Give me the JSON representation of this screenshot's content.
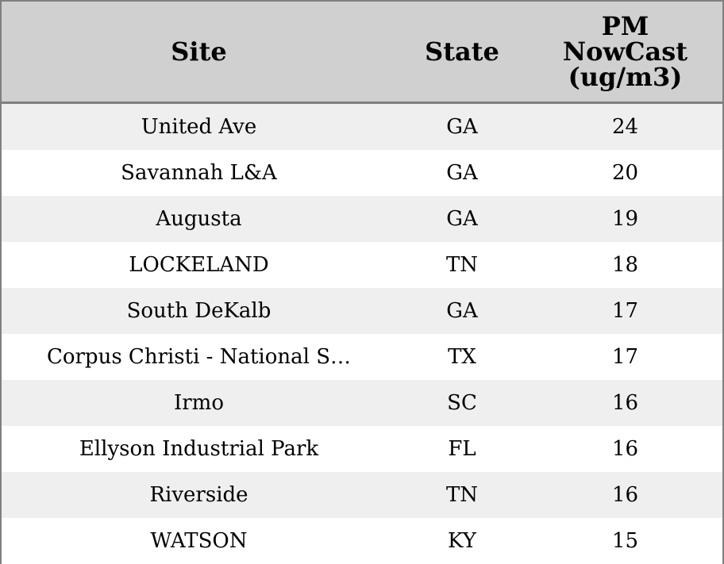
{
  "table": {
    "columns": [
      "Site",
      "State",
      "PM NowCast (ug/m3)"
    ],
    "rows": [
      [
        "United Ave",
        "GA",
        24
      ],
      [
        "Savannah L&A",
        "GA",
        20
      ],
      [
        "Augusta",
        "GA",
        19
      ],
      [
        "LOCKELAND",
        "TN",
        18
      ],
      [
        "South DeKalb",
        "GA",
        17
      ],
      [
        "Corpus Christi - National S…",
        "TX",
        17
      ],
      [
        "Irmo",
        "SC",
        16
      ],
      [
        "Ellyson Industrial Park",
        "FL",
        16
      ],
      [
        "Riverside",
        "TN",
        16
      ],
      [
        "WATSON",
        "KY",
        15
      ]
    ]
  }
}
